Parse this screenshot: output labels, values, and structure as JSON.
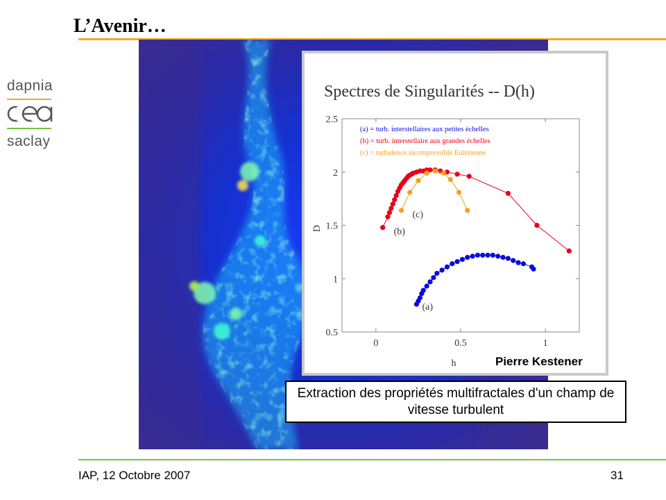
{
  "slide": {
    "title": "L’Avenir…",
    "footer": "IAP, 12 Octobre 2007",
    "page_number": "31",
    "caption": "Extraction des propriétés multifractales d'un champ de vitesse turbulent",
    "author": "Pierre Kestener"
  },
  "logo": {
    "top_text": "dapnia",
    "middle_text": "cea",
    "bottom_text": "saclay"
  },
  "colors": {
    "orange_rule": "#f5a623",
    "green_rule": "#7ac143",
    "series_a": "#0a0ae0",
    "series_b": "#e8001a",
    "series_c": "#f5a01e"
  },
  "chart_data": {
    "type": "scatter",
    "title": "Spectres de Singularités -- D(h)",
    "xlabel": "h",
    "ylabel": "D",
    "xlim": [
      -0.2,
      1.2
    ],
    "ylim": [
      0.5,
      2.5
    ],
    "x_ticks": [
      "0",
      "0.5",
      "1"
    ],
    "y_ticks": [
      "0.5",
      "1",
      "1.5",
      "2",
      "2.5"
    ],
    "legend_position": "top-left",
    "series": [
      {
        "label": "(a)",
        "name": "(a) = turb. interstellaires aux petites échelles",
        "color": "#0a0ae0",
        "points": [
          [
            0.24,
            0.76
          ],
          [
            0.25,
            0.79
          ],
          [
            0.26,
            0.82
          ],
          [
            0.27,
            0.86
          ],
          [
            0.28,
            0.89
          ],
          [
            0.3,
            0.93
          ],
          [
            0.32,
            0.97
          ],
          [
            0.34,
            1.01
          ],
          [
            0.36,
            1.05
          ],
          [
            0.39,
            1.08
          ],
          [
            0.42,
            1.11
          ],
          [
            0.45,
            1.14
          ],
          [
            0.48,
            1.16
          ],
          [
            0.51,
            1.18
          ],
          [
            0.54,
            1.2
          ],
          [
            0.57,
            1.21
          ],
          [
            0.6,
            1.22
          ],
          [
            0.63,
            1.22
          ],
          [
            0.66,
            1.22
          ],
          [
            0.69,
            1.22
          ],
          [
            0.72,
            1.21
          ],
          [
            0.75,
            1.2
          ],
          [
            0.78,
            1.19
          ],
          [
            0.81,
            1.17
          ],
          [
            0.84,
            1.15
          ],
          [
            0.87,
            1.14
          ],
          [
            0.92,
            1.11
          ],
          [
            0.93,
            1.09
          ]
        ]
      },
      {
        "label": "(b)",
        "name": "(b) = turb. interstellaire aux grandes échelles",
        "color": "#e8001a",
        "points": [
          [
            0.04,
            1.48
          ],
          [
            0.07,
            1.58
          ],
          [
            0.08,
            1.62
          ],
          [
            0.09,
            1.66
          ],
          [
            0.1,
            1.7
          ],
          [
            0.11,
            1.74
          ],
          [
            0.12,
            1.78
          ],
          [
            0.13,
            1.82
          ],
          [
            0.14,
            1.85
          ],
          [
            0.15,
            1.88
          ],
          [
            0.16,
            1.9
          ],
          [
            0.17,
            1.92
          ],
          [
            0.18,
            1.94
          ],
          [
            0.19,
            1.96
          ],
          [
            0.2,
            1.97
          ],
          [
            0.21,
            1.98
          ],
          [
            0.22,
            1.99
          ],
          [
            0.24,
            2.0
          ],
          [
            0.26,
            2.01
          ],
          [
            0.28,
            2.01
          ],
          [
            0.3,
            2.02
          ],
          [
            0.32,
            2.02
          ],
          [
            0.35,
            2.02
          ],
          [
            0.38,
            2.01
          ],
          [
            0.42,
            2.0
          ],
          [
            0.48,
            1.98
          ],
          [
            0.55,
            1.96
          ],
          [
            0.78,
            1.8
          ],
          [
            0.95,
            1.5
          ],
          [
            1.14,
            1.26
          ]
        ]
      },
      {
        "label": "(c)",
        "name": "(c) = turbulence incompressible Eulérienne",
        "color": "#f5a01e",
        "points": [
          [
            0.15,
            1.64
          ],
          [
            0.2,
            1.81
          ],
          [
            0.25,
            1.92
          ],
          [
            0.3,
            1.99
          ],
          [
            0.35,
            2.01
          ],
          [
            0.4,
            1.99
          ],
          [
            0.44,
            1.93
          ],
          [
            0.49,
            1.81
          ],
          [
            0.54,
            1.64
          ]
        ]
      }
    ]
  }
}
